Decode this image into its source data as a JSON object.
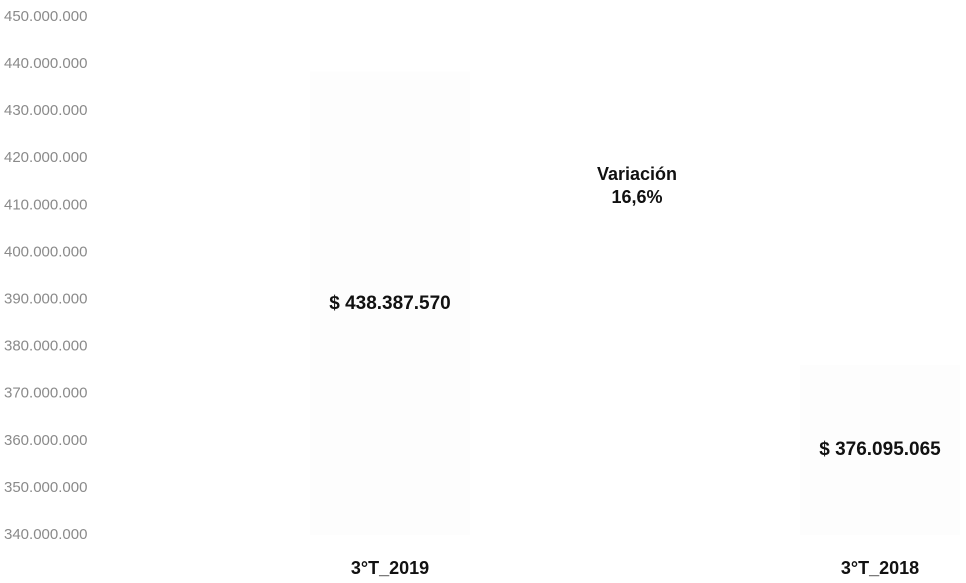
{
  "chart_data": {
    "type": "bar",
    "categories": [
      "3°T_2019",
      "3°T_2018"
    ],
    "values": [
      438387570,
      376095065
    ],
    "value_labels": [
      "$ 438.387.570",
      "$ 376.095.065"
    ],
    "color": "#fdfdfd",
    "annotation": [
      "Variación",
      "16,6%"
    ],
    "ylim": [
      340000000,
      450000000
    ],
    "yticks": [
      {
        "value": 450000000,
        "label": "450.000.000"
      },
      {
        "value": 440000000,
        "label": "440.000.000"
      },
      {
        "value": 430000000,
        "label": "430.000.000"
      },
      {
        "value": 420000000,
        "label": "420.000.000"
      },
      {
        "value": 410000000,
        "label": "410.000.000"
      },
      {
        "value": 400000000,
        "label": "400.000.000"
      },
      {
        "value": 390000000,
        "label": "390.000.000"
      },
      {
        "value": 380000000,
        "label": "380.000.000"
      },
      {
        "value": 370000000,
        "label": "370.000.000"
      },
      {
        "value": 360000000,
        "label": "360.000.000"
      },
      {
        "value": 350000000,
        "label": "350.000.000"
      },
      {
        "value": 340000000,
        "label": "340.000.000"
      }
    ],
    "grid": false
  }
}
